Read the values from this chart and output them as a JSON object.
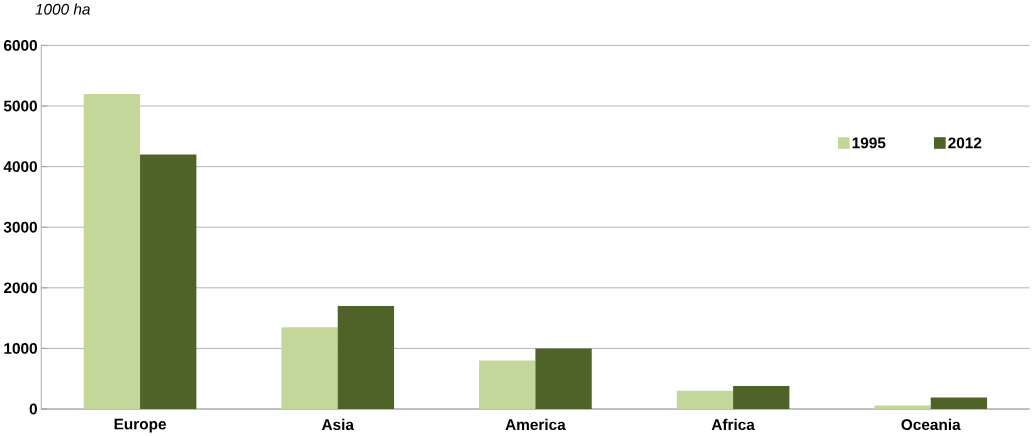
{
  "chart_data": {
    "type": "bar",
    "ylabel": "1000 ha",
    "categories": [
      "Europe",
      "Asia",
      "America",
      "Africa",
      "Oceania"
    ],
    "series": [
      {
        "name": "1995",
        "color": "#c4d79b",
        "values": [
          5200,
          1350,
          800,
          300,
          60
        ]
      },
      {
        "name": "2012",
        "color": "#4f6228",
        "values": [
          4200,
          1700,
          1000,
          380,
          190
        ]
      }
    ],
    "ylim": [
      0,
      6000
    ],
    "yticks": [
      0,
      1000,
      2000,
      3000,
      4000,
      5000,
      6000
    ],
    "grid": "y",
    "legend": "top right"
  }
}
